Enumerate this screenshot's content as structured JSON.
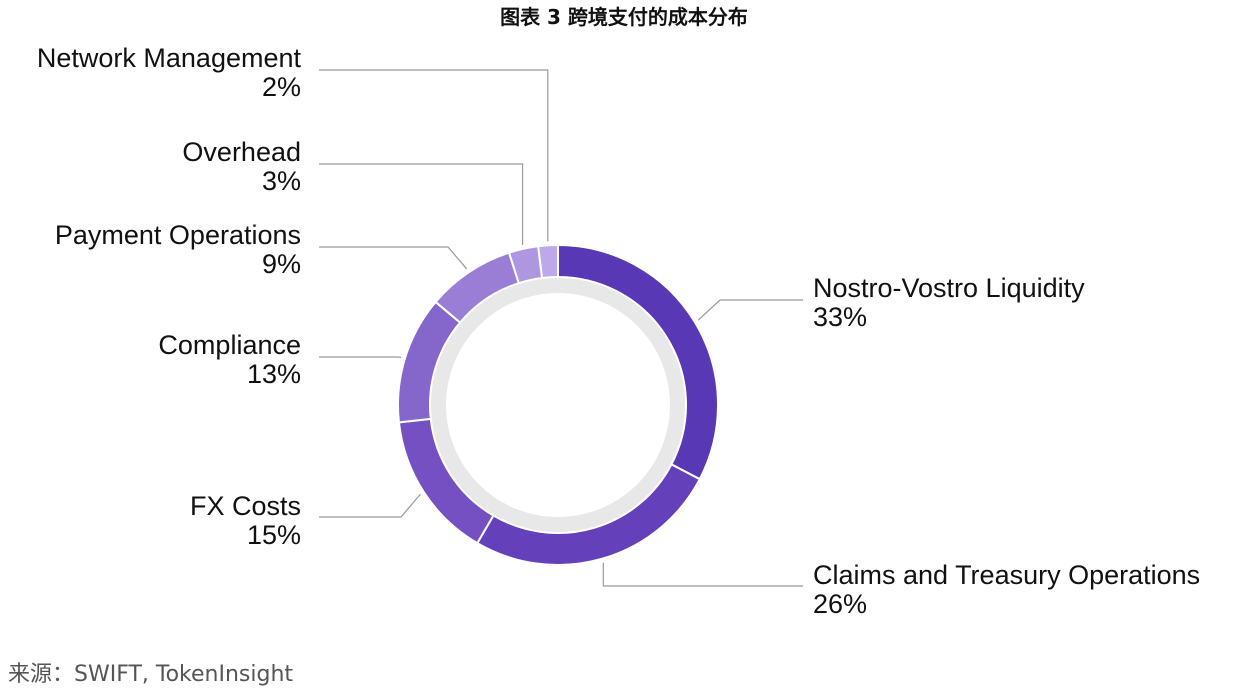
{
  "chart_data": {
    "type": "pie",
    "title": "图表 3 跨境支付的成本分布",
    "slices": [
      {
        "label": "Nostro-Vostro Liquidity",
        "value": 33,
        "value_label": "33%",
        "color": "#5838b4"
      },
      {
        "label": "Claims and Treasury Operations",
        "value": 26,
        "value_label": "26%",
        "color": "#6540bb"
      },
      {
        "label": "FX Costs",
        "value": 15,
        "value_label": "15%",
        "color": "#7550c3"
      },
      {
        "label": "Compliance",
        "value": 13,
        "value_label": "13%",
        "color": "#8566ca"
      },
      {
        "label": "Payment Operations",
        "value": 9,
        "value_label": "9%",
        "color": "#9a7ed6"
      },
      {
        "label": "Overhead",
        "value": 3,
        "value_label": "3%",
        "color": "#ae96e0"
      },
      {
        "label": "Network Management",
        "value": 2,
        "value_label": "2%",
        "color": "#bda8e8"
      }
    ]
  },
  "source": "来源：SWIFT, TokenInsight",
  "colors": {
    "inner_track": "#e8e8e8",
    "leader_line": "#999999",
    "background": "#ffffff"
  }
}
